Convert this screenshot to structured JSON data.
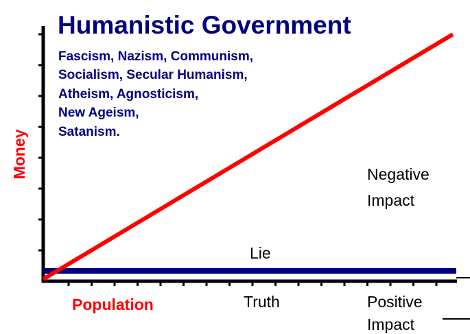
{
  "title": "Humanistic Government",
  "list": [
    "Fascism, Nazism, Communism,",
    "Socialism, Secular Humanism,",
    "Atheism, Agnosticism,",
    "New Ageism,",
    "Satanism."
  ],
  "y_axis_label": "Money",
  "x_axis_label": "Population",
  "truth_label": "Truth",
  "lie_label": "Lie",
  "negative_label": [
    "Negative",
    "Impact"
  ],
  "positive_label": [
    "Positive",
    "Impact"
  ]
}
